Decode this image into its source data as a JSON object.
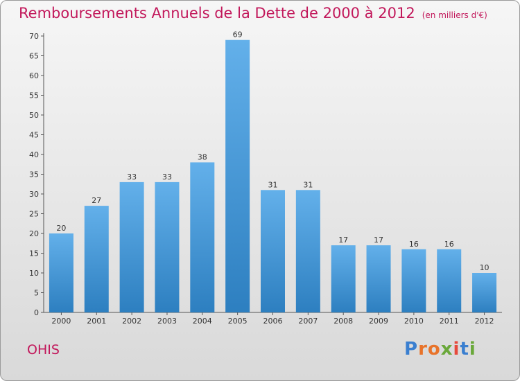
{
  "title": "Remboursements Annuels de la Dette de 2000 à 2012",
  "subtitle": "(en milliers d'€)",
  "commune": "OHIS",
  "logo": {
    "text": "Proxiti",
    "colors": [
      "#3a7fd0",
      "#e8732a",
      "#e8732a",
      "#6aa83a",
      "#e64a3c",
      "#3a7fd0",
      "#6aa83a"
    ]
  },
  "colors": {
    "bar_top": "#63b0ea",
    "bar_bottom": "#2d7fc0",
    "accent": "#c2185b"
  },
  "chart_data": {
    "type": "bar",
    "categories": [
      "2000",
      "2001",
      "2002",
      "2003",
      "2004",
      "2005",
      "2006",
      "2007",
      "2008",
      "2009",
      "2010",
      "2011",
      "2012"
    ],
    "values": [
      20,
      27,
      33,
      33,
      38,
      69,
      31,
      31,
      17,
      17,
      16,
      16,
      10
    ],
    "title": "Remboursements Annuels de la Dette de 2000 à 2012",
    "xlabel": "",
    "ylabel": "",
    "ylim": [
      0,
      70
    ],
    "yticks": [
      0,
      5,
      10,
      15,
      20,
      25,
      30,
      35,
      40,
      45,
      50,
      55,
      60,
      65,
      70
    ],
    "grid": false,
    "data_labels": true
  }
}
